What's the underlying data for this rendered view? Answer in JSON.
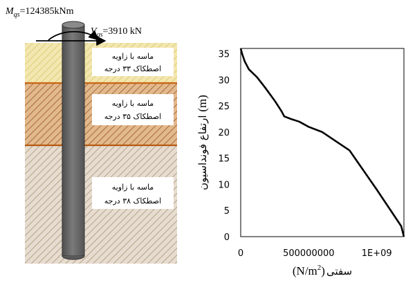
{
  "schematic": {
    "moment_symbol": "M",
    "moment_subscript": "qs",
    "moment_value": "=124385kNm",
    "shear_symbol": "V",
    "shear_subscript": "qs",
    "shear_value": "=3910 kN",
    "layers": [
      {
        "label_line1": "ماسه با زاویه",
        "label_line2": "اصطکاک ۳۳ درجه",
        "color": "#f0e3a8"
      },
      {
        "label_line1": "ماسه با زاویه",
        "label_line2": "اصطکاک ۳۵ درجه",
        "color": "#d9a877"
      },
      {
        "label_line1": "ماسه با زاویه",
        "label_line2": "اصطکاک ۳۸ درجه",
        "color": "#d8c8b4"
      }
    ],
    "pile_color": "#6e6e6e",
    "boundary_color": "#c86414"
  },
  "chart_data": {
    "type": "line",
    "ylabel_text": "ارتفاع فونداسیون",
    "ylabel_unit": "(m)",
    "xlabel_text": "سفتی",
    "xlabel_unit_main": "(N/m",
    "xlabel_unit_sup": "2",
    "xlabel_unit_end": ")",
    "xlim": [
      0,
      1200000000
    ],
    "ylim": [
      0,
      36
    ],
    "x_ticks": [
      {
        "value": 0,
        "label": "0"
      },
      {
        "value": 500000000,
        "label": "500000000"
      },
      {
        "value": 1000000000,
        "label": "1E+09"
      }
    ],
    "y_ticks": [
      {
        "value": 0,
        "label": "0"
      },
      {
        "value": 5,
        "label": "5"
      },
      {
        "value": 10,
        "label": "10"
      },
      {
        "value": 15,
        "label": "15"
      },
      {
        "value": 20,
        "label": "20"
      },
      {
        "value": 25,
        "label": "25"
      },
      {
        "value": 30,
        "label": "30"
      },
      {
        "value": 35,
        "label": "35"
      }
    ],
    "grid": false,
    "series": [
      {
        "color": "#000000",
        "x": [
          1200000000,
          1180000000,
          1000000000,
          800000000,
          600000000,
          500000000,
          430000000,
          370000000,
          320000000,
          300000000,
          250000000,
          180000000,
          120000000,
          60000000,
          30000000,
          10000000,
          0
        ],
        "y": [
          0,
          2,
          9,
          16.5,
          20,
          21,
          22,
          22.5,
          23,
          24,
          26,
          28.5,
          30.5,
          32,
          33.5,
          35,
          36
        ]
      }
    ]
  }
}
